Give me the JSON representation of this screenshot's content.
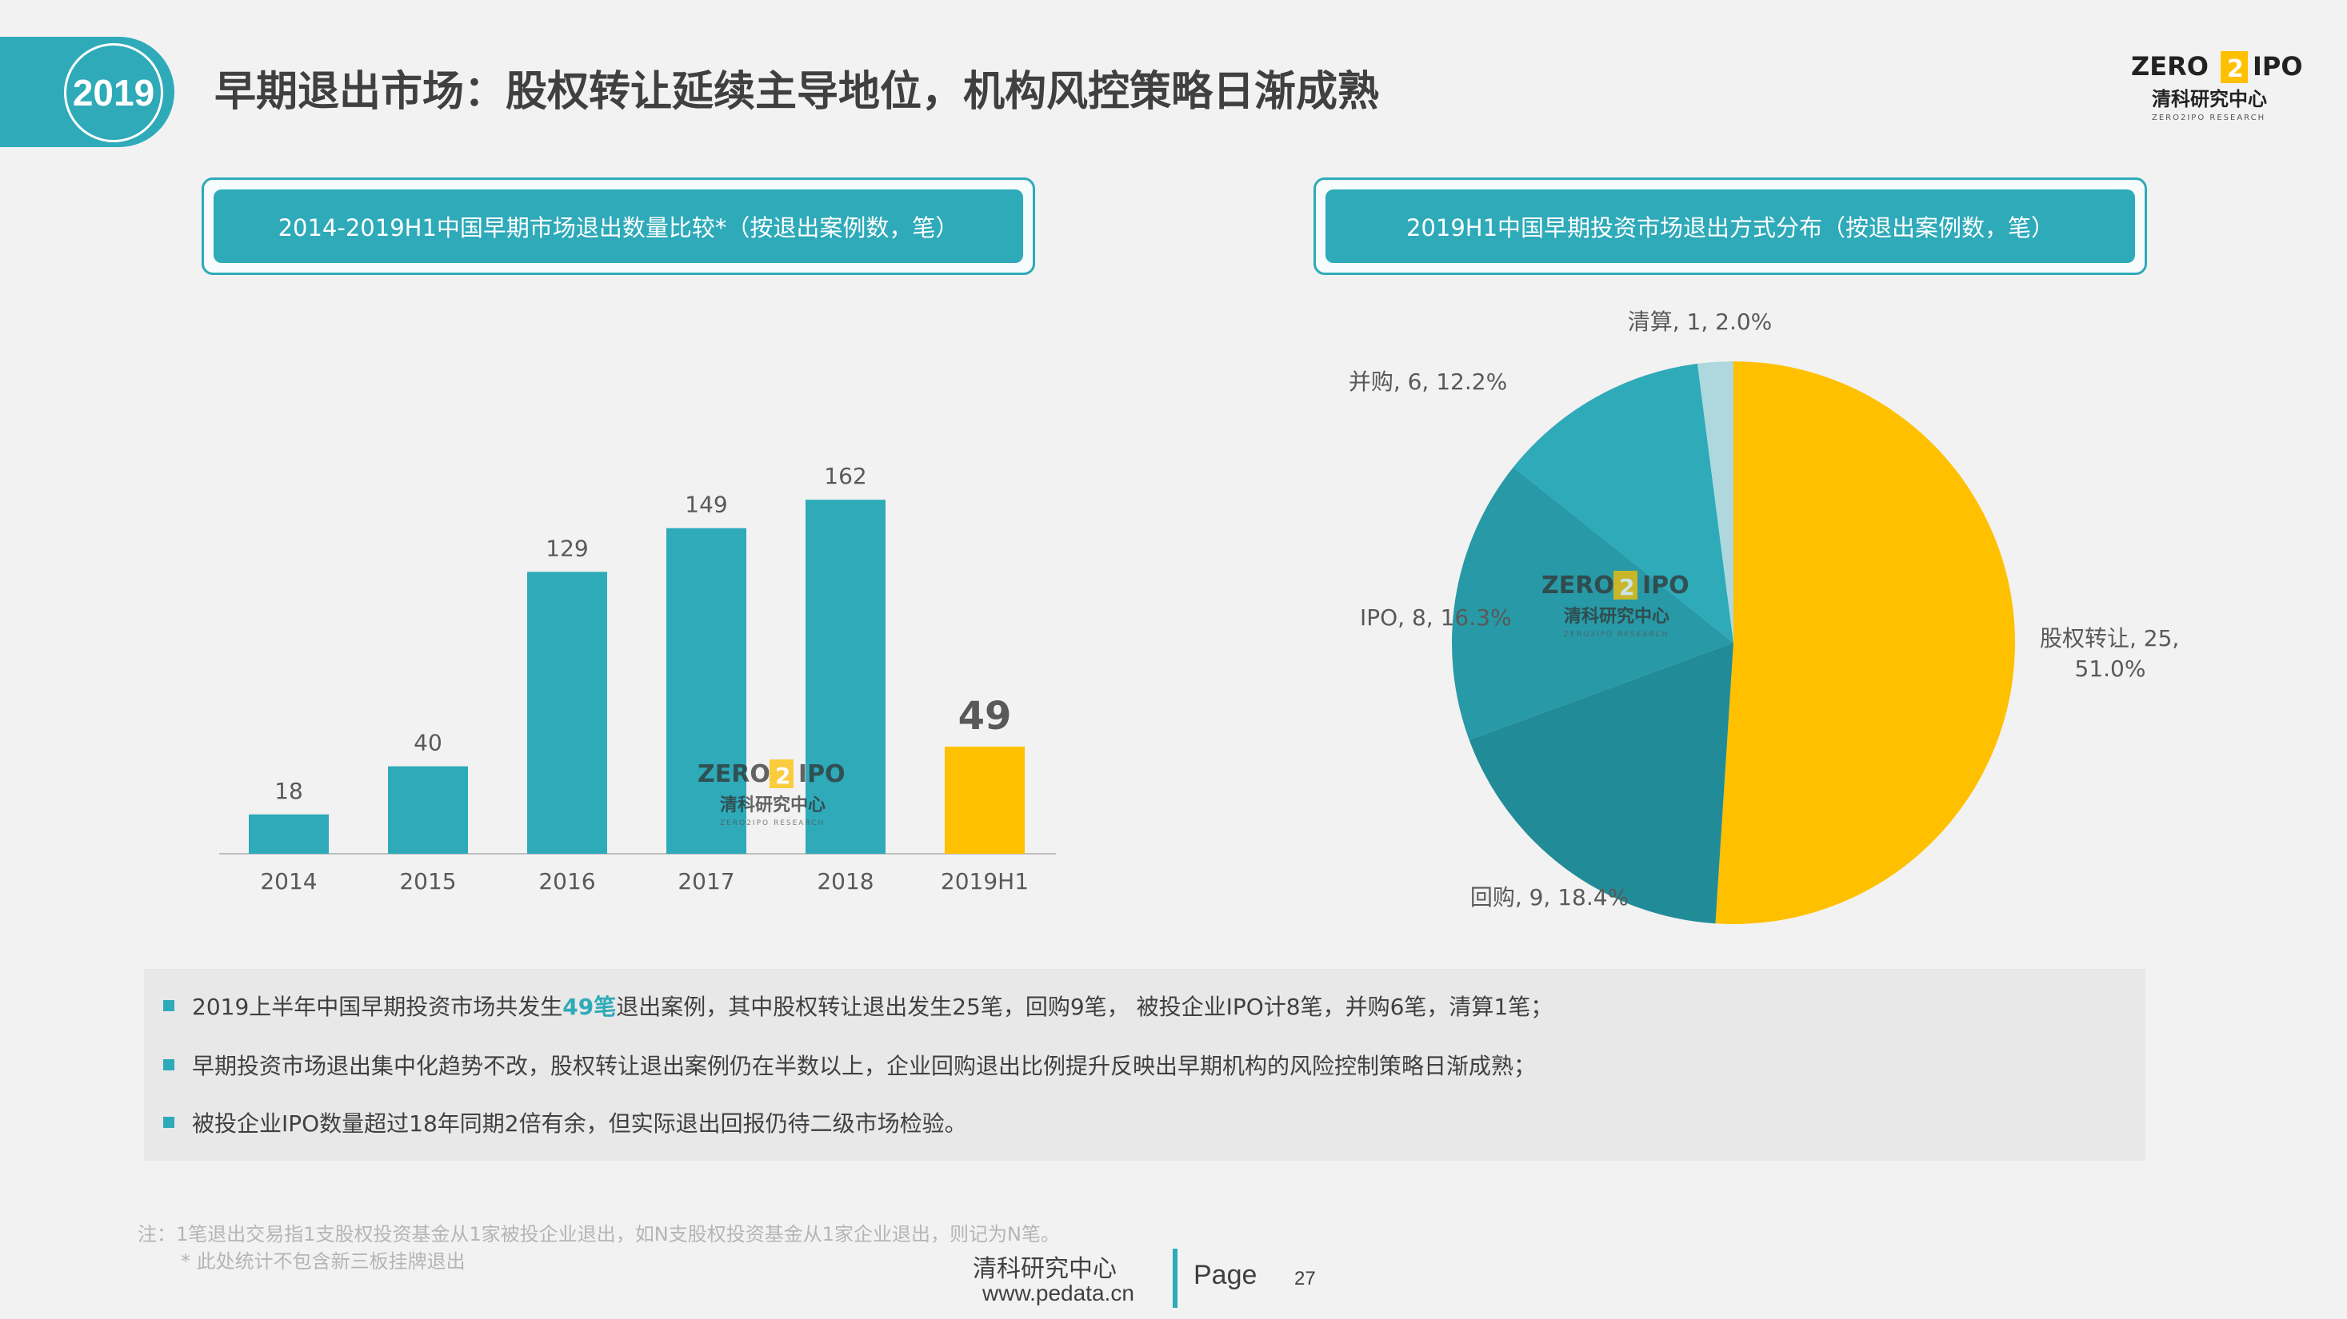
{
  "header": {
    "year_badge": "2019",
    "title": "早期退出市场：股权转让延续主导地位，机构风控策略日渐成熟",
    "logo": {
      "line1_left": "ZERO",
      "line1_mid": "2",
      "line1_right": "IPO",
      "line2": "清科研究中心",
      "line3": "ZERO2IPO RESEARCH"
    }
  },
  "watermark": {
    "line1_left": "ZERO",
    "line1_mid": "2",
    "line1_right": "IPO",
    "line2": "清科研究中心",
    "line3": "ZERO2IPO RESEARCH"
  },
  "colors": {
    "teal": "#2eaab9",
    "gold": "#ffc000",
    "text": "#404040"
  },
  "chart_data": [
    {
      "type": "bar",
      "title": "2014-2019H1中国早期市场退出数量比较*（按退出案例数，笔）",
      "categories": [
        "2014",
        "2015",
        "2016",
        "2017",
        "2018",
        "2019H1"
      ],
      "values": [
        18,
        40,
        129,
        149,
        162,
        49
      ],
      "value_labels": [
        "18",
        "40",
        "129",
        "149",
        "162",
        "49"
      ],
      "highlight_index": 5,
      "bar_colors": [
        "#2eaab9",
        "#2eaab9",
        "#2eaab9",
        "#2eaab9",
        "#2eaab9",
        "#ffc000"
      ],
      "ylim": [
        0,
        175
      ],
      "xlabel": "",
      "ylabel": "",
      "grid": false
    },
    {
      "type": "pie",
      "title": "2019H1中国早期投资市场退出方式分布（按退出案例数，笔）",
      "slices": [
        {
          "label": "股权转让",
          "value": 25,
          "percent": "51.0%",
          "color": "#ffc000"
        },
        {
          "label": "回购",
          "value": 9,
          "percent": "18.4%",
          "color": "#218c98"
        },
        {
          "label": "IPO",
          "value": 8,
          "percent": "16.3%",
          "color": "#2899a6"
        },
        {
          "label": "并购",
          "value": 6,
          "percent": "12.2%",
          "color": "#2eaab9"
        },
        {
          "label": "清算",
          "value": 1,
          "percent": "2.0%",
          "color": "#aed8de"
        }
      ],
      "data_labels": [
        {
          "line1": "股权转让, 25,",
          "line2": "51.0%"
        },
        {
          "line1": "回购, 9, 18.4%"
        },
        {
          "line1": "IPO, 8, 16.3%"
        },
        {
          "line1": "并购, 6, 12.2%"
        },
        {
          "line1": "清算, 1, 2.0%"
        }
      ]
    }
  ],
  "summary": {
    "bullets": [
      {
        "pre": "2019上半年中国早期投资市场共发生",
        "highlight": "49笔",
        "post": "退出案例，其中股权转让退出发生25笔，回购9笔， 被投企业IPO计8笔，并购6笔，清算1笔；"
      },
      {
        "pre": "早期投资市场退出集中化趋势不改，股权转让退出案例仍在半数以上，企业回购退出比例提升反映出早期机构的风险控制策略日渐成熟；",
        "highlight": "",
        "post": ""
      },
      {
        "pre": "被投企业IPO数量超过18年同期2倍有余，但实际退出回报仍待二级市场检验。",
        "highlight": "",
        "post": ""
      }
    ]
  },
  "notes": {
    "line1": "注：1笔退出交易指1支股权投资基金从1家被投企业退出，如N支股权投资基金从1家企业退出，则记为N笔。",
    "line2": "*   此处统计不包含新三板挂牌退出"
  },
  "footer": {
    "org": "清科研究中心",
    "url": "www.pedata.cn",
    "page_label": "Page",
    "page_number": "27"
  }
}
